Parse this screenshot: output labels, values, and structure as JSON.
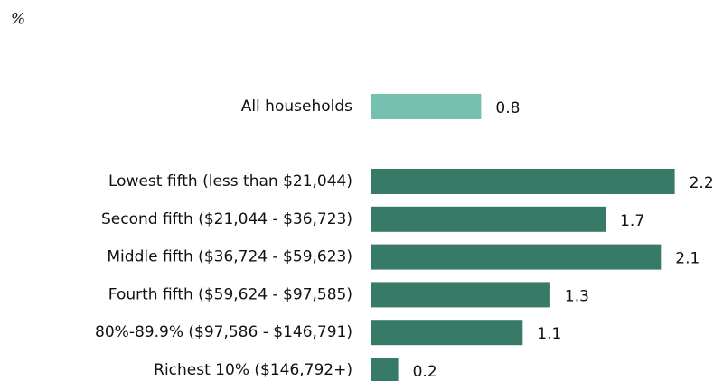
{
  "chart_data": {
    "type": "barh",
    "unit_label": "%",
    "categories": [
      "All households",
      "Lowest fifth (less than $21,044)",
      "Second fifth ($21,044 - $36,723)",
      "Middle fifth ($36,724 - $59,623)",
      "Fourth fifth ($59,624 - $97,585)",
      "80%-89.9% ($97,586 - $146,791)",
      "Richest 10% ($146,792+)"
    ],
    "values": [
      0.8,
      2.2,
      1.7,
      2.1,
      1.3,
      1.1,
      0.2
    ],
    "colors": [
      "#76c0b0",
      "#387a68",
      "#387a68",
      "#387a68",
      "#387a68",
      "#387a68",
      "#387a68"
    ]
  }
}
